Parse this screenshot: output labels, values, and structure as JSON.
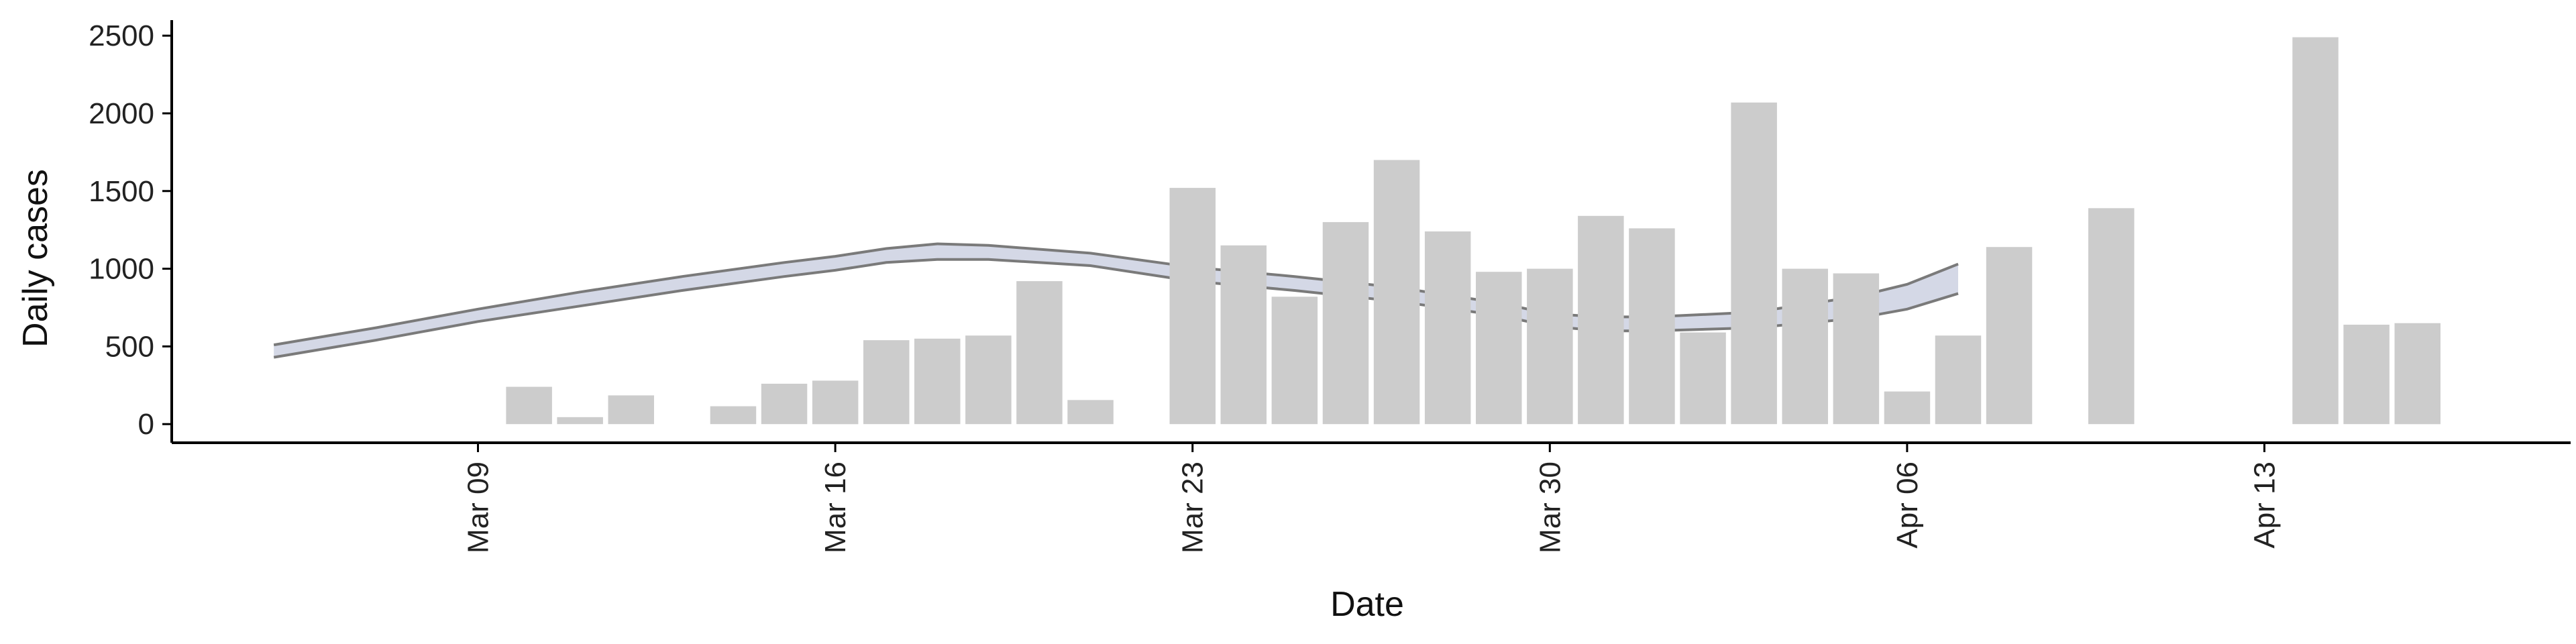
{
  "chart_data": {
    "type": "bar",
    "xlabel": "Date",
    "ylabel": "Daily cases",
    "x_axis": "date",
    "xlim": [
      "2017-03-03",
      "2017-04-19"
    ],
    "ylim": [
      -120,
      2600
    ],
    "x_ticks": [
      {
        "date": "2017-03-09",
        "label": "Mar 09"
      },
      {
        "date": "2017-03-16",
        "label": "Mar 16"
      },
      {
        "date": "2017-03-23",
        "label": "Mar 23"
      },
      {
        "date": "2017-03-30",
        "label": "Mar 30"
      },
      {
        "date": "2017-04-06",
        "label": "Apr 06"
      },
      {
        "date": "2017-04-13",
        "label": "Apr 13"
      }
    ],
    "y_ticks": [
      0,
      500,
      1000,
      1500,
      2000,
      2500
    ],
    "grid": false,
    "bars": [
      {
        "date": "2017-03-10",
        "value": 240
      },
      {
        "date": "2017-03-11",
        "value": 45
      },
      {
        "date": "2017-03-12",
        "value": 185
      },
      {
        "date": "2017-03-14",
        "value": 115
      },
      {
        "date": "2017-03-15",
        "value": 260
      },
      {
        "date": "2017-03-16",
        "value": 280
      },
      {
        "date": "2017-03-17",
        "value": 540
      },
      {
        "date": "2017-03-18",
        "value": 550
      },
      {
        "date": "2017-03-19",
        "value": 570
      },
      {
        "date": "2017-03-20",
        "value": 920
      },
      {
        "date": "2017-03-21",
        "value": 155
      },
      {
        "date": "2017-03-23",
        "value": 1520
      },
      {
        "date": "2017-03-24",
        "value": 1150
      },
      {
        "date": "2017-03-25",
        "value": 820
      },
      {
        "date": "2017-03-26",
        "value": 1300
      },
      {
        "date": "2017-03-27",
        "value": 1700
      },
      {
        "date": "2017-03-28",
        "value": 1240
      },
      {
        "date": "2017-03-29",
        "value": 980
      },
      {
        "date": "2017-03-30",
        "value": 1000
      },
      {
        "date": "2017-03-31",
        "value": 1340
      },
      {
        "date": "2017-04-01",
        "value": 1260
      },
      {
        "date": "2017-04-02",
        "value": 590
      },
      {
        "date": "2017-04-03",
        "value": 2070
      },
      {
        "date": "2017-04-04",
        "value": 1000
      },
      {
        "date": "2017-04-05",
        "value": 970
      },
      {
        "date": "2017-04-06",
        "value": 210
      },
      {
        "date": "2017-04-07",
        "value": 570
      },
      {
        "date": "2017-04-08",
        "value": 1140
      },
      {
        "date": "2017-04-10",
        "value": 1390
      },
      {
        "date": "2017-04-14",
        "value": 2490
      },
      {
        "date": "2017-04-15",
        "value": 640
      },
      {
        "date": "2017-04-16",
        "value": 650
      }
    ],
    "trend_band": [
      {
        "date": "2017-03-05",
        "upper": 510,
        "lower": 430
      },
      {
        "date": "2017-03-07",
        "upper": 620,
        "lower": 540
      },
      {
        "date": "2017-03-09",
        "upper": 740,
        "lower": 660
      },
      {
        "date": "2017-03-11",
        "upper": 850,
        "lower": 760
      },
      {
        "date": "2017-03-13",
        "upper": 950,
        "lower": 860
      },
      {
        "date": "2017-03-15",
        "upper": 1040,
        "lower": 950
      },
      {
        "date": "2017-03-16",
        "upper": 1080,
        "lower": 990
      },
      {
        "date": "2017-03-17",
        "upper": 1130,
        "lower": 1040
      },
      {
        "date": "2017-03-18",
        "upper": 1160,
        "lower": 1060
      },
      {
        "date": "2017-03-19",
        "upper": 1150,
        "lower": 1060
      },
      {
        "date": "2017-03-21",
        "upper": 1100,
        "lower": 1020
      },
      {
        "date": "2017-03-23",
        "upper": 1010,
        "lower": 920
      },
      {
        "date": "2017-03-25",
        "upper": 950,
        "lower": 860
      },
      {
        "date": "2017-03-27",
        "upper": 880,
        "lower": 790
      },
      {
        "date": "2017-03-29",
        "upper": 780,
        "lower": 700
      },
      {
        "date": "2017-03-30",
        "upper": 710,
        "lower": 630
      },
      {
        "date": "2017-03-31",
        "upper": 690,
        "lower": 600
      },
      {
        "date": "2017-04-01",
        "upper": 690,
        "lower": 600
      },
      {
        "date": "2017-04-03",
        "upper": 720,
        "lower": 620
      },
      {
        "date": "2017-04-05",
        "upper": 820,
        "lower": 680
      },
      {
        "date": "2017-04-06",
        "upper": 900,
        "lower": 740
      },
      {
        "date": "2017-04-07",
        "upper": 1030,
        "lower": 840
      }
    ],
    "colors": {
      "bar": "#cccccc",
      "band_fill": "#c5cbdd",
      "band_edge": "#7a7a7a",
      "axis": "#000000"
    }
  }
}
